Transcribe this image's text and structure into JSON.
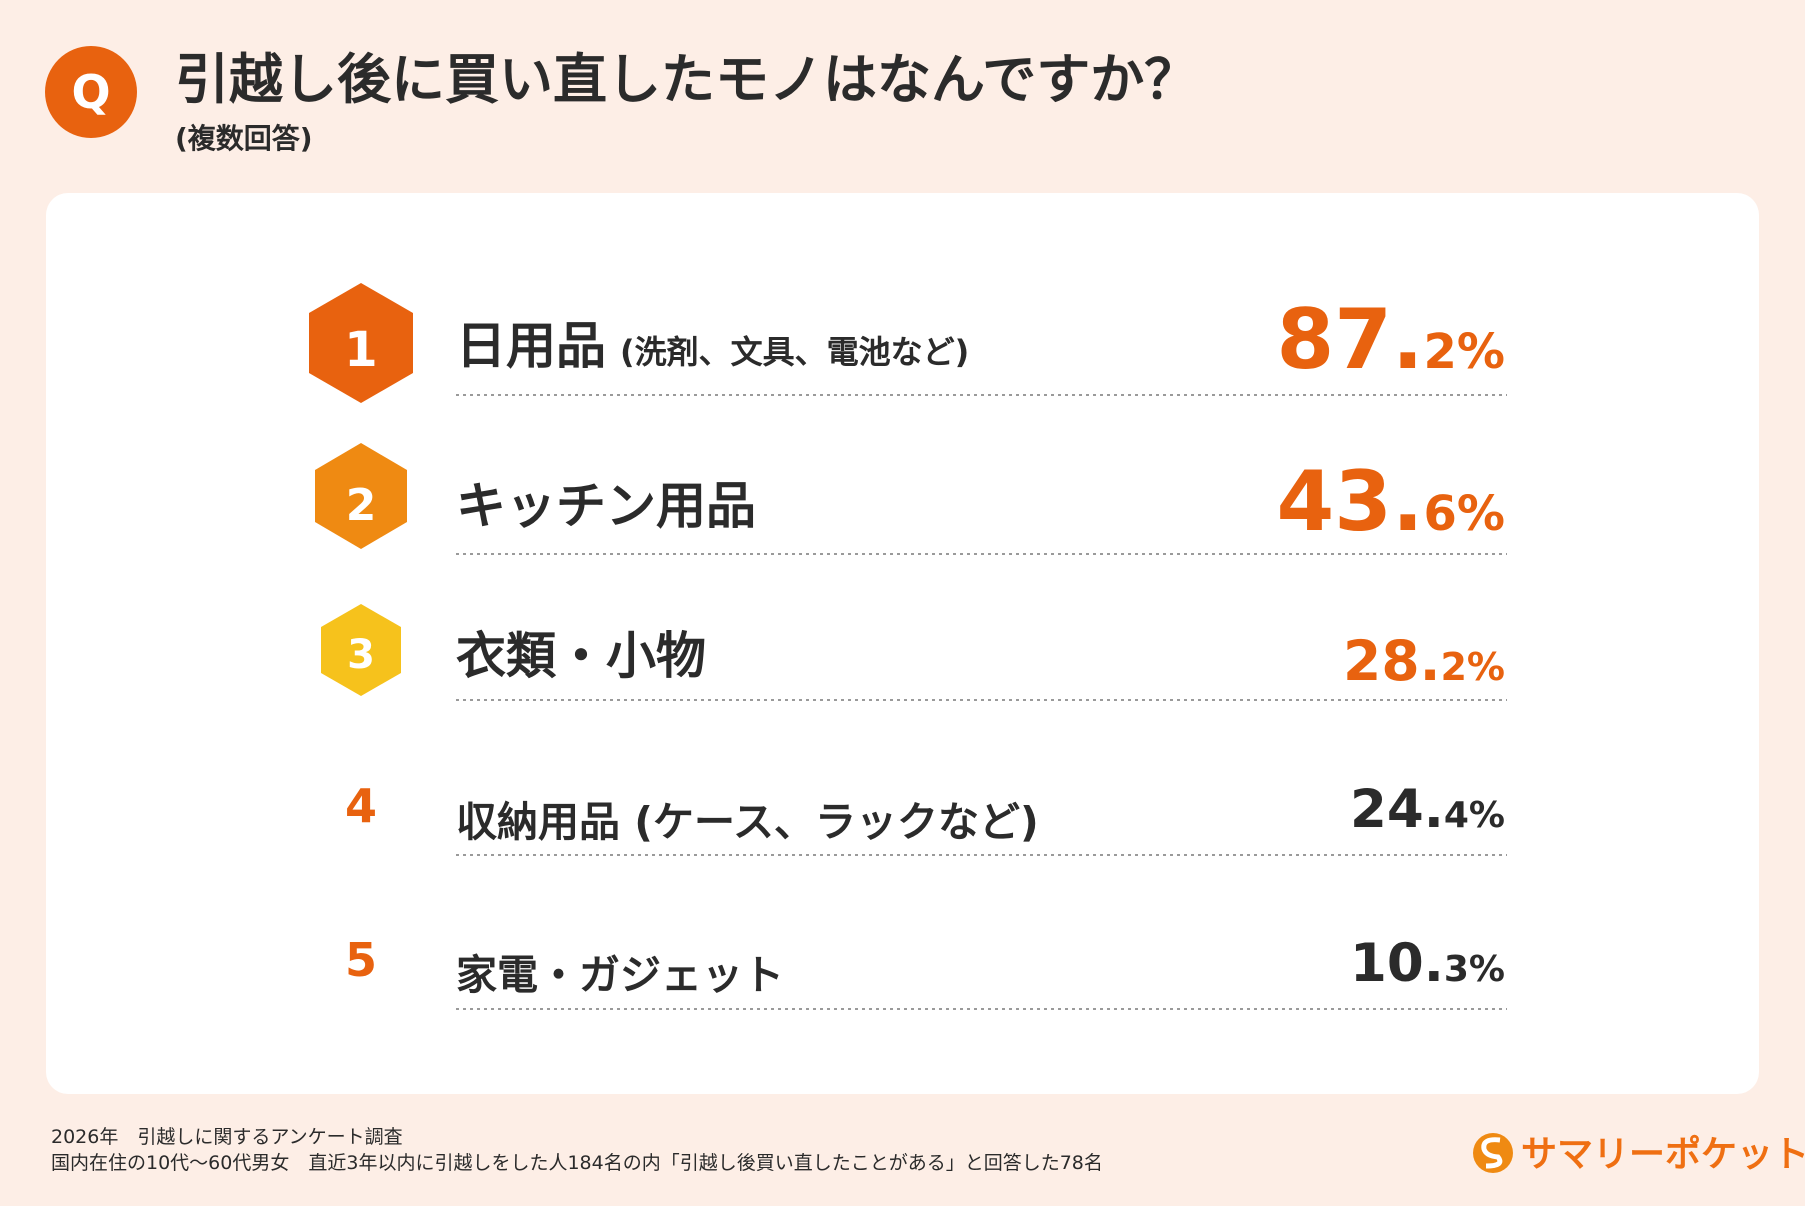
{
  "header": {
    "title": "引越し後に買い直したモノはなんですか？",
    "subtitle": "(複数回答)",
    "badge": "Q"
  },
  "ranking": [
    {
      "rank": "1",
      "label": "日用品",
      "note": "(洗剤、文具、電池など)",
      "value": "87.2%"
    },
    {
      "rank": "2",
      "label": "キッチン用品",
      "value": "43.6%"
    },
    {
      "rank": "3",
      "label": "衣類・小物",
      "value": "28.2%"
    },
    {
      "rank": "4",
      "label": "収納用品 (ケース、ラックなど)",
      "value": "24.4%"
    },
    {
      "rank": "5",
      "label": "家電・ガジェット",
      "value": "10.3%"
    }
  ],
  "footer": {
    "lines": [
      "2026年　引越しに関するアンケート調査",
      "国内在住の10代〜60代男女　直近3年以内に引越しをした人184名の内「引越し後買い直したことがある」と回答した78名"
    ],
    "brand": "サマリーポケット"
  }
}
